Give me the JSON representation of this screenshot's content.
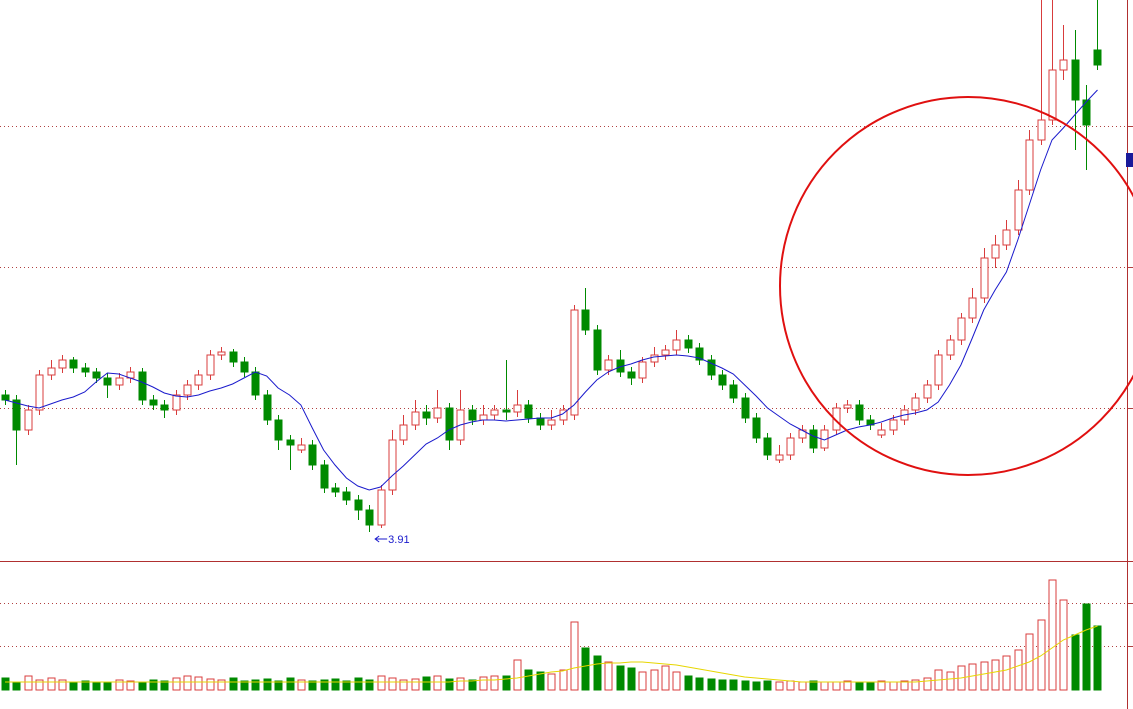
{
  "chart_data": {
    "type": "candlestick",
    "up_color": "#d83c3c",
    "down_color": "#008a00",
    "ma_color": "#1a1acc",
    "volume_ma_color": "#e6d600",
    "grid_color": "#b04040",
    "ylim": [
      3.63,
      9.23
    ],
    "ygrid": [
      5.15,
      6.56,
      7.97
    ],
    "volume_ylim": [
      0,
      125
    ],
    "volume_grid": [
      44,
      87
    ],
    "open": [
      5.28,
      5.23,
      4.93,
      5.13,
      5.48,
      5.55,
      5.63,
      5.55,
      5.51,
      5.45,
      5.38,
      5.45,
      5.51,
      5.23,
      5.18,
      5.13,
      5.28,
      5.38,
      5.48,
      5.68,
      5.71,
      5.61,
      5.51,
      5.28,
      5.03,
      4.83,
      4.73,
      4.78,
      4.58,
      4.35,
      4.31,
      4.23,
      4.13,
      3.98,
      4.33,
      4.83,
      4.98,
      5.11,
      5.05,
      5.15,
      4.83,
      5.13,
      5.03,
      5.08,
      5.13,
      5.11,
      5.18,
      5.05,
      4.98,
      5.03,
      5.08,
      6.13,
      5.93,
      5.53,
      5.63,
      5.51,
      5.45,
      5.61,
      5.68,
      5.73,
      5.83,
      5.75,
      5.63,
      5.48,
      5.38,
      5.25,
      5.05,
      4.85,
      4.63,
      4.68,
      4.85,
      4.93,
      4.75,
      4.93,
      5.15,
      5.18,
      5.03,
      4.88,
      4.93,
      5.03,
      5.13,
      5.25,
      5.38,
      5.68,
      5.83,
      6.05,
      6.25,
      6.65,
      6.78,
      6.93,
      7.33,
      7.83,
      8.03,
      8.53,
      8.63,
      8.23,
      8.73
    ],
    "high": [
      5.33,
      5.28,
      5.18,
      5.53,
      5.63,
      5.68,
      5.66,
      5.6,
      5.55,
      5.5,
      5.5,
      5.56,
      5.55,
      5.28,
      5.23,
      5.33,
      5.43,
      5.53,
      5.73,
      5.76,
      5.74,
      5.66,
      5.56,
      5.33,
      5.08,
      4.88,
      4.85,
      4.83,
      4.63,
      4.4,
      4.36,
      4.28,
      4.18,
      4.38,
      4.93,
      5.08,
      5.23,
      5.18,
      5.33,
      5.2,
      5.33,
      5.18,
      5.18,
      5.18,
      5.63,
      5.33,
      5.23,
      5.1,
      5.13,
      5.18,
      6.18,
      6.35,
      5.98,
      5.68,
      5.73,
      5.56,
      5.66,
      5.76,
      5.78,
      5.93,
      5.88,
      5.8,
      5.68,
      5.53,
      5.43,
      5.3,
      5.1,
      4.9,
      4.78,
      4.9,
      4.98,
      4.98,
      4.98,
      5.2,
      5.23,
      5.23,
      5.08,
      5.0,
      5.08,
      5.18,
      5.3,
      5.43,
      5.73,
      5.88,
      6.1,
      6.35,
      6.75,
      6.88,
      7.03,
      7.43,
      7.93,
      9.23,
      9.23,
      8.98,
      8.93,
      8.38,
      9.23
    ],
    "low": [
      5.18,
      4.58,
      4.88,
      5.08,
      5.43,
      5.5,
      5.5,
      5.46,
      5.4,
      5.25,
      5.33,
      5.4,
      5.18,
      5.13,
      5.05,
      5.08,
      5.23,
      5.33,
      5.43,
      5.63,
      5.56,
      5.46,
      5.23,
      4.98,
      4.73,
      4.53,
      4.7,
      4.53,
      4.3,
      4.26,
      4.18,
      4.03,
      3.91,
      3.95,
      4.28,
      4.78,
      4.93,
      4.98,
      5.0,
      4.73,
      4.78,
      4.98,
      4.98,
      5.03,
      5.03,
      5.06,
      5.0,
      4.93,
      4.93,
      4.98,
      5.03,
      5.88,
      5.48,
      5.48,
      5.46,
      5.38,
      5.4,
      5.56,
      5.63,
      5.68,
      5.7,
      5.58,
      5.43,
      5.33,
      5.2,
      5.0,
      4.8,
      4.63,
      4.6,
      4.63,
      4.8,
      4.7,
      4.72,
      4.88,
      5.1,
      4.98,
      4.93,
      4.85,
      4.88,
      4.98,
      5.08,
      5.2,
      5.33,
      5.63,
      5.78,
      6.0,
      6.2,
      6.55,
      6.73,
      6.88,
      7.28,
      7.78,
      7.98,
      8.43,
      7.73,
      7.53,
      8.53
    ],
    "close": [
      5.23,
      4.93,
      5.13,
      5.48,
      5.55,
      5.63,
      5.55,
      5.51,
      5.45,
      5.38,
      5.45,
      5.51,
      5.23,
      5.18,
      5.13,
      5.28,
      5.38,
      5.48,
      5.68,
      5.71,
      5.61,
      5.51,
      5.28,
      5.03,
      4.83,
      4.78,
      4.78,
      4.58,
      4.35,
      4.31,
      4.23,
      4.13,
      3.98,
      4.33,
      4.83,
      4.98,
      5.11,
      5.05,
      5.15,
      4.83,
      5.13,
      5.03,
      5.08,
      5.13,
      5.11,
      5.18,
      5.05,
      4.98,
      5.03,
      5.13,
      6.13,
      5.93,
      5.53,
      5.63,
      5.51,
      5.45,
      5.61,
      5.68,
      5.73,
      5.83,
      5.75,
      5.63,
      5.48,
      5.38,
      5.25,
      5.05,
      4.85,
      4.68,
      4.68,
      4.85,
      4.93,
      4.75,
      4.93,
      5.15,
      5.18,
      5.03,
      4.98,
      4.93,
      5.03,
      5.13,
      5.25,
      5.38,
      5.68,
      5.83,
      6.05,
      6.25,
      6.65,
      6.78,
      6.93,
      7.33,
      7.83,
      8.03,
      8.53,
      8.63,
      8.23,
      7.98,
      8.58
    ],
    "ma": [
      5.23,
      5.2,
      5.17,
      5.15,
      5.19,
      5.23,
      5.26,
      5.31,
      5.41,
      5.5,
      5.49,
      5.45,
      5.41,
      5.36,
      5.3,
      5.27,
      5.26,
      5.28,
      5.32,
      5.35,
      5.39,
      5.45,
      5.51,
      5.47,
      5.35,
      5.28,
      5.18,
      4.95,
      4.73,
      4.58,
      4.45,
      4.37,
      4.33,
      4.36,
      4.47,
      4.57,
      4.68,
      4.79,
      4.85,
      4.93,
      4.98,
      5.01,
      5.03,
      5.03,
      5.02,
      5.03,
      5.04,
      5.05,
      5.05,
      5.09,
      5.18,
      5.31,
      5.43,
      5.51,
      5.56,
      5.59,
      5.63,
      5.66,
      5.67,
      5.68,
      5.67,
      5.65,
      5.6,
      5.55,
      5.49,
      5.38,
      5.27,
      5.15,
      5.07,
      4.99,
      4.93,
      4.87,
      4.83,
      4.88,
      4.93,
      4.96,
      4.98,
      5.01,
      5.05,
      5.08,
      5.1,
      5.13,
      5.21,
      5.38,
      5.58,
      5.85,
      6.13,
      6.33,
      6.51,
      6.83,
      7.18,
      7.53,
      7.83,
      7.95,
      8.08,
      8.21,
      8.33
    ],
    "volume": [
      12,
      8,
      14,
      10,
      12,
      10,
      8,
      9,
      8,
      7,
      10,
      9,
      8,
      10,
      9,
      12,
      14,
      13,
      11,
      10,
      12,
      9,
      10,
      11,
      9,
      12,
      10,
      9,
      10,
      11,
      9,
      12,
      10,
      14,
      12,
      10,
      11,
      13,
      14,
      11,
      12,
      10,
      13,
      14,
      14,
      30,
      20,
      18,
      16,
      20,
      68,
      42,
      34,
      28,
      24,
      22,
      18,
      20,
      24,
      18,
      14,
      12,
      11,
      10,
      10,
      9,
      8,
      9,
      8,
      9,
      8,
      9,
      8,
      8,
      9,
      8,
      8,
      9,
      8,
      9,
      10,
      12,
      20,
      18,
      24,
      26,
      28,
      30,
      34,
      40,
      56,
      70,
      110,
      90,
      55,
      86,
      64
    ],
    "volume_ma": [
      8,
      8,
      8,
      8,
      8,
      8,
      8,
      8,
      8,
      8,
      8,
      8,
      8,
      8,
      8,
      8,
      8,
      8,
      8,
      8,
      8,
      8,
      8,
      8,
      8,
      8,
      8,
      8,
      8,
      8,
      8,
      8,
      8,
      8,
      8,
      8,
      8,
      8,
      8,
      8,
      9,
      9,
      10,
      10,
      11,
      12,
      14,
      16,
      18,
      19,
      22,
      24,
      26,
      27,
      27,
      28,
      28,
      27,
      26,
      25,
      23,
      21,
      19,
      17,
      15,
      13,
      12,
      11,
      10,
      9,
      8,
      8,
      8,
      8,
      8,
      8,
      8,
      8,
      8,
      8,
      8,
      9,
      10,
      11,
      12,
      14,
      16,
      18,
      20,
      24,
      28,
      34,
      42,
      50,
      55,
      60,
      64
    ]
  }
}
